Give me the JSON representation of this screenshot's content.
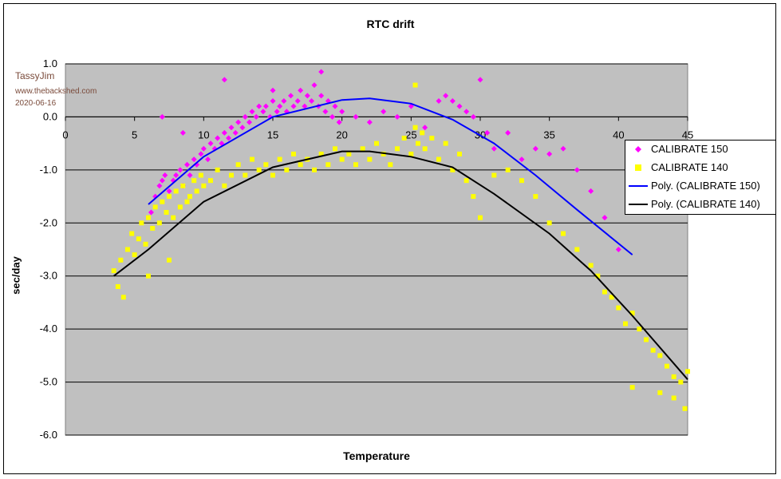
{
  "chart_data": {
    "type": "scatter",
    "title": "RTC drift",
    "xlabel": "Temperature",
    "ylabel": "sec/day",
    "xlim": [
      0,
      45
    ],
    "ylim": [
      -6,
      1
    ],
    "x_ticks": [
      "0",
      "5",
      "10",
      "15",
      "20",
      "25",
      "30",
      "35",
      "40",
      "45"
    ],
    "y_ticks": [
      "1.0",
      "0.0",
      "-1.0",
      "-2.0",
      "-3.0",
      "-4.0",
      "-5.0",
      "-6.0"
    ],
    "grid": "horizontal",
    "legend_position": "right",
    "plot_background": "#c0c0c0",
    "series": [
      {
        "name": "CALIBRATE 150",
        "marker": "diamond",
        "color": "#ff00ff",
        "points": [
          [
            6.2,
            -1.8
          ],
          [
            6.5,
            -1.5
          ],
          [
            6.8,
            -1.3
          ],
          [
            7.0,
            -1.2
          ],
          [
            7.2,
            -1.1
          ],
          [
            7.5,
            -1.4
          ],
          [
            7.8,
            -1.2
          ],
          [
            8.0,
            -1.1
          ],
          [
            8.3,
            -1.0
          ],
          [
            8.5,
            -1.3
          ],
          [
            8.8,
            -0.9
          ],
          [
            9.0,
            -1.1
          ],
          [
            9.3,
            -0.8
          ],
          [
            9.5,
            -0.9
          ],
          [
            9.8,
            -0.7
          ],
          [
            10.0,
            -0.6
          ],
          [
            10.3,
            -0.8
          ],
          [
            10.5,
            -0.5
          ],
          [
            10.8,
            -0.6
          ],
          [
            11.0,
            -0.4
          ],
          [
            11.3,
            -0.5
          ],
          [
            11.5,
            -0.3
          ],
          [
            11.8,
            -0.4
          ],
          [
            12.0,
            -0.2
          ],
          [
            12.3,
            -0.3
          ],
          [
            12.5,
            -0.1
          ],
          [
            12.8,
            -0.2
          ],
          [
            13.0,
            0.0
          ],
          [
            13.3,
            -0.1
          ],
          [
            13.5,
            0.1
          ],
          [
            13.8,
            0.0
          ],
          [
            14.0,
            0.2
          ],
          [
            14.3,
            0.1
          ],
          [
            14.5,
            0.2
          ],
          [
            14.8,
            0.0
          ],
          [
            15.0,
            0.3
          ],
          [
            15.3,
            0.1
          ],
          [
            15.5,
            0.2
          ],
          [
            15.8,
            0.3
          ],
          [
            16.0,
            0.1
          ],
          [
            16.3,
            0.4
          ],
          [
            16.5,
            0.2
          ],
          [
            16.8,
            0.3
          ],
          [
            17.0,
            0.5
          ],
          [
            17.3,
            0.2
          ],
          [
            17.5,
            0.4
          ],
          [
            17.8,
            0.3
          ],
          [
            18.0,
            0.6
          ],
          [
            18.3,
            0.2
          ],
          [
            18.5,
            0.4
          ],
          [
            18.8,
            0.1
          ],
          [
            19.0,
            0.3
          ],
          [
            19.3,
            0.0
          ],
          [
            19.5,
            0.2
          ],
          [
            19.8,
            -0.1
          ],
          [
            20.0,
            0.1
          ],
          [
            21.0,
            0.0
          ],
          [
            22.0,
            -0.1
          ],
          [
            23.0,
            0.1
          ],
          [
            24.0,
            0.0
          ],
          [
            25.0,
            0.2
          ],
          [
            26.0,
            -0.2
          ],
          [
            27.0,
            0.3
          ],
          [
            27.5,
            0.4
          ],
          [
            28.0,
            0.3
          ],
          [
            28.5,
            0.2
          ],
          [
            29.0,
            0.1
          ],
          [
            29.5,
            0.0
          ],
          [
            30.0,
            0.7
          ],
          [
            30.5,
            -0.3
          ],
          [
            31.0,
            -0.6
          ],
          [
            32.0,
            -0.3
          ],
          [
            33.0,
            -0.8
          ],
          [
            34.0,
            -0.6
          ],
          [
            35.0,
            -0.7
          ],
          [
            36.0,
            -0.6
          ],
          [
            37.0,
            -1.0
          ],
          [
            38.0,
            -1.4
          ],
          [
            39.0,
            -1.9
          ],
          [
            40.0,
            -2.5
          ],
          [
            11.5,
            0.7
          ],
          [
            18.5,
            0.85
          ],
          [
            15.0,
            0.5
          ],
          [
            8.5,
            -0.3
          ],
          [
            7.0,
            0.0
          ]
        ]
      },
      {
        "name": "CALIBRATE 140",
        "marker": "square",
        "color": "#ffff00",
        "points": [
          [
            3.5,
            -2.9
          ],
          [
            3.8,
            -3.2
          ],
          [
            4.0,
            -2.7
          ],
          [
            4.2,
            -3.4
          ],
          [
            4.5,
            -2.5
          ],
          [
            4.8,
            -2.2
          ],
          [
            5.0,
            -2.6
          ],
          [
            5.3,
            -2.3
          ],
          [
            5.5,
            -2.0
          ],
          [
            5.8,
            -2.4
          ],
          [
            6.0,
            -1.9
          ],
          [
            6.3,
            -2.1
          ],
          [
            6.5,
            -1.7
          ],
          [
            6.8,
            -2.0
          ],
          [
            7.0,
            -1.6
          ],
          [
            7.3,
            -1.8
          ],
          [
            7.5,
            -1.5
          ],
          [
            7.8,
            -1.9
          ],
          [
            8.0,
            -1.4
          ],
          [
            8.3,
            -1.7
          ],
          [
            8.5,
            -1.3
          ],
          [
            8.8,
            -1.6
          ],
          [
            9.0,
            -1.5
          ],
          [
            9.3,
            -1.2
          ],
          [
            9.5,
            -1.4
          ],
          [
            9.8,
            -1.1
          ],
          [
            10.0,
            -1.3
          ],
          [
            10.5,
            -1.2
          ],
          [
            11.0,
            -1.0
          ],
          [
            11.5,
            -1.3
          ],
          [
            12.0,
            -1.1
          ],
          [
            12.5,
            -0.9
          ],
          [
            13.0,
            -1.1
          ],
          [
            13.5,
            -0.8
          ],
          [
            14.0,
            -1.0
          ],
          [
            14.5,
            -0.9
          ],
          [
            15.0,
            -1.1
          ],
          [
            15.5,
            -0.8
          ],
          [
            16.0,
            -1.0
          ],
          [
            16.5,
            -0.7
          ],
          [
            17.0,
            -0.9
          ],
          [
            17.5,
            -0.8
          ],
          [
            18.0,
            -1.0
          ],
          [
            18.5,
            -0.7
          ],
          [
            19.0,
            -0.9
          ],
          [
            19.5,
            -0.6
          ],
          [
            20.0,
            -0.8
          ],
          [
            20.5,
            -0.7
          ],
          [
            21.0,
            -0.9
          ],
          [
            21.5,
            -0.6
          ],
          [
            22.0,
            -0.8
          ],
          [
            22.5,
            -0.5
          ],
          [
            23.0,
            -0.7
          ],
          [
            23.5,
            -0.9
          ],
          [
            24.0,
            -0.6
          ],
          [
            24.5,
            -0.4
          ],
          [
            25.0,
            -0.7
          ],
          [
            25.3,
            -0.2
          ],
          [
            25.5,
            -0.5
          ],
          [
            25.8,
            -0.3
          ],
          [
            26.0,
            -0.6
          ],
          [
            26.5,
            -0.4
          ],
          [
            27.0,
            -0.8
          ],
          [
            27.5,
            -0.5
          ],
          [
            28.0,
            -1.0
          ],
          [
            28.5,
            -0.7
          ],
          [
            29.0,
            -1.2
          ],
          [
            29.5,
            -1.5
          ],
          [
            30.0,
            -1.9
          ],
          [
            31.0,
            -1.1
          ],
          [
            32.0,
            -1.0
          ],
          [
            33.0,
            -1.2
          ],
          [
            34.0,
            -1.5
          ],
          [
            35.0,
            -2.0
          ],
          [
            36.0,
            -2.2
          ],
          [
            37.0,
            -2.5
          ],
          [
            38.0,
            -2.8
          ],
          [
            38.5,
            -3.0
          ],
          [
            39.0,
            -3.3
          ],
          [
            39.5,
            -3.4
          ],
          [
            40.0,
            -3.6
          ],
          [
            40.5,
            -3.9
          ],
          [
            41.0,
            -3.7
          ],
          [
            41.5,
            -4.0
          ],
          [
            42.0,
            -4.2
          ],
          [
            42.5,
            -4.4
          ],
          [
            43.0,
            -4.5
          ],
          [
            43.5,
            -4.7
          ],
          [
            44.0,
            -4.9
          ],
          [
            44.5,
            -5.0
          ],
          [
            45.0,
            -4.8
          ],
          [
            41.0,
            -5.1
          ],
          [
            43.0,
            -5.2
          ],
          [
            44.0,
            -5.3
          ],
          [
            44.8,
            -5.5
          ],
          [
            25.3,
            0.6
          ],
          [
            6.0,
            -3.0
          ],
          [
            7.5,
            -2.7
          ]
        ]
      },
      {
        "name": "Poly. (CALIBRATE 150)",
        "line": true,
        "color": "#0000ff",
        "points": [
          [
            6,
            -1.65
          ],
          [
            10,
            -0.75
          ],
          [
            15,
            0.0
          ],
          [
            20,
            0.32
          ],
          [
            22,
            0.35
          ],
          [
            25,
            0.25
          ],
          [
            28,
            -0.05
          ],
          [
            31,
            -0.5
          ],
          [
            34,
            -1.1
          ],
          [
            37,
            -1.75
          ],
          [
            41,
            -2.6
          ]
        ]
      },
      {
        "name": "Poly. (CALIBRATE 140)",
        "line": true,
        "color": "#000000",
        "points": [
          [
            3.5,
            -3.0
          ],
          [
            6,
            -2.5
          ],
          [
            10,
            -1.6
          ],
          [
            15,
            -0.95
          ],
          [
            20,
            -0.65
          ],
          [
            22,
            -0.65
          ],
          [
            25,
            -0.75
          ],
          [
            28,
            -0.95
          ],
          [
            31,
            -1.45
          ],
          [
            35,
            -2.2
          ],
          [
            38,
            -2.9
          ],
          [
            41,
            -3.75
          ],
          [
            45,
            -4.95
          ]
        ]
      }
    ]
  },
  "watermark": {
    "name": "TassyJim",
    "site": "www.thebackshed.com",
    "date": "2020-06-16"
  }
}
